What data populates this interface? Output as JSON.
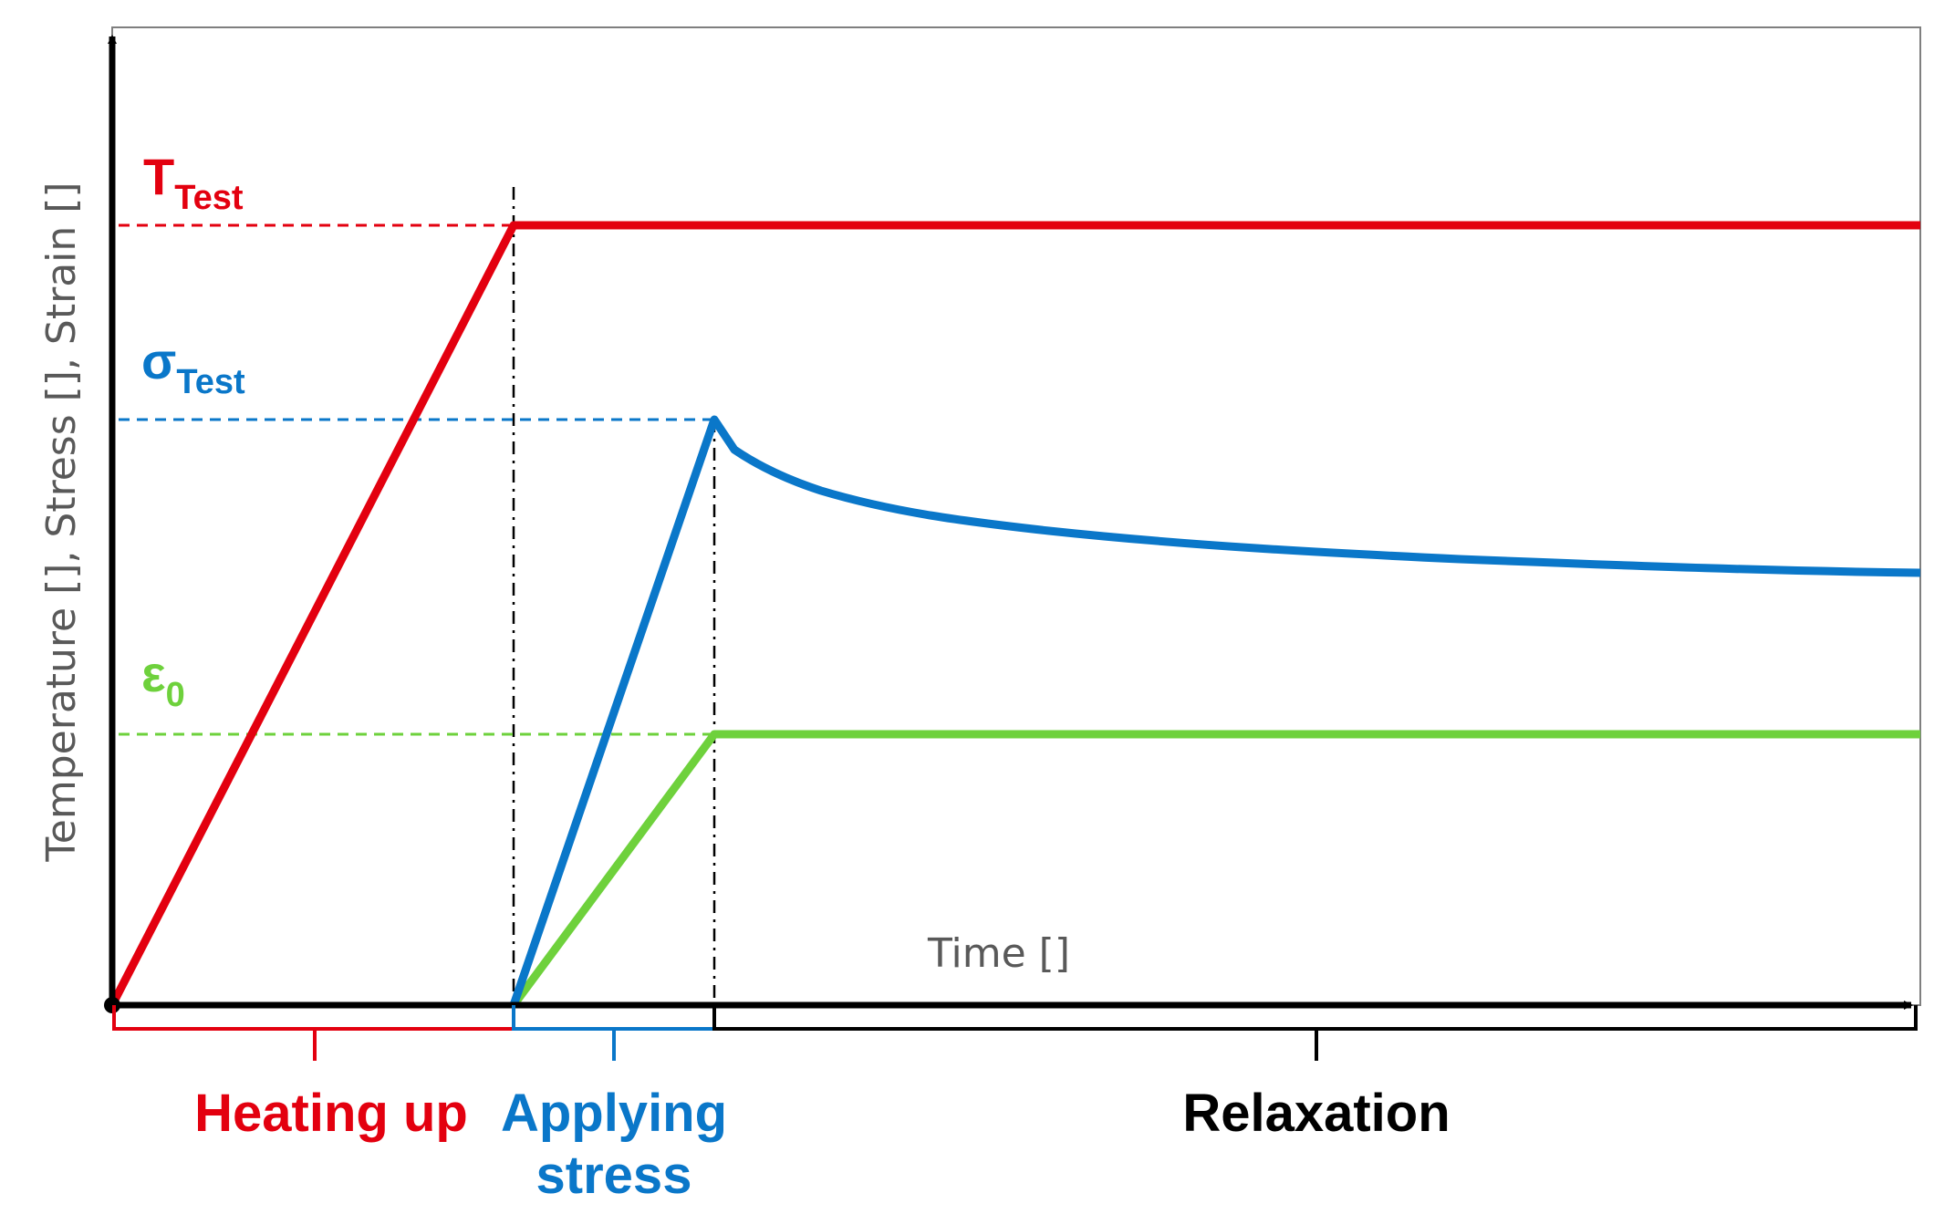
{
  "axes": {
    "y_title": "Temperature [], Stress [], Strain []",
    "x_title": "Time []"
  },
  "levels": {
    "temperature": {
      "symbol": "T",
      "subscript": "Test",
      "color": "#e3000f"
    },
    "stress": {
      "symbol": "σ",
      "subscript": "Test",
      "color": "#0a77c9"
    },
    "strain": {
      "symbol": "ε",
      "subscript": "0",
      "color": "#6ed13c"
    }
  },
  "phases": {
    "heating": {
      "label": "Heating up",
      "color": "#e3000f"
    },
    "applying": {
      "line1": "Applying",
      "line2": "stress",
      "color": "#0a77c9"
    },
    "relaxation": {
      "label": "Relaxation",
      "color": "#000000"
    }
  }
}
